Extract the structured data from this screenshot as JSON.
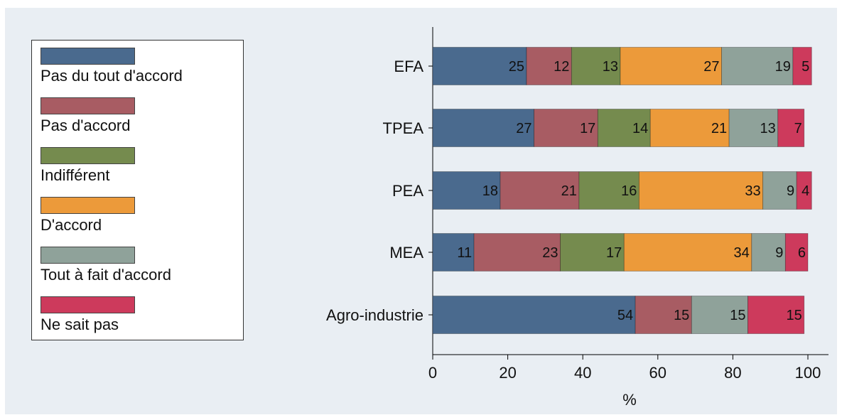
{
  "chart_data": {
    "type": "bar",
    "orientation": "horizontal",
    "stacked": true,
    "categories": [
      "EFA",
      "TPEA",
      "PEA",
      "MEA",
      "Agro-industrie"
    ],
    "series": [
      {
        "name": "Pas du tout d'accord",
        "color": "#4a6a8e",
        "values": [
          25,
          27,
          18,
          11,
          54
        ]
      },
      {
        "name": "Pas d'accord",
        "color": "#a85c63",
        "values": [
          12,
          17,
          21,
          23,
          15
        ]
      },
      {
        "name": "Indifférent",
        "color": "#758b4e",
        "values": [
          13,
          14,
          16,
          17,
          null
        ]
      },
      {
        "name": "D'accord",
        "color": "#ec9a3a",
        "values": [
          27,
          21,
          33,
          34,
          null
        ]
      },
      {
        "name": "Tout à fait d'accord",
        "color": "#8fa29a",
        "values": [
          19,
          13,
          9,
          9,
          15
        ]
      },
      {
        "name": "Ne sait pas",
        "color": "#cd3a5c",
        "values": [
          5,
          7,
          4,
          6,
          15
        ]
      }
    ],
    "xlabel": "%",
    "ylabel": "",
    "xlim": [
      0,
      100
    ],
    "xticks": [
      "0",
      "20",
      "40",
      "60",
      "80",
      "100"
    ],
    "grid": false,
    "legend_position": "left",
    "data_labels": true
  }
}
